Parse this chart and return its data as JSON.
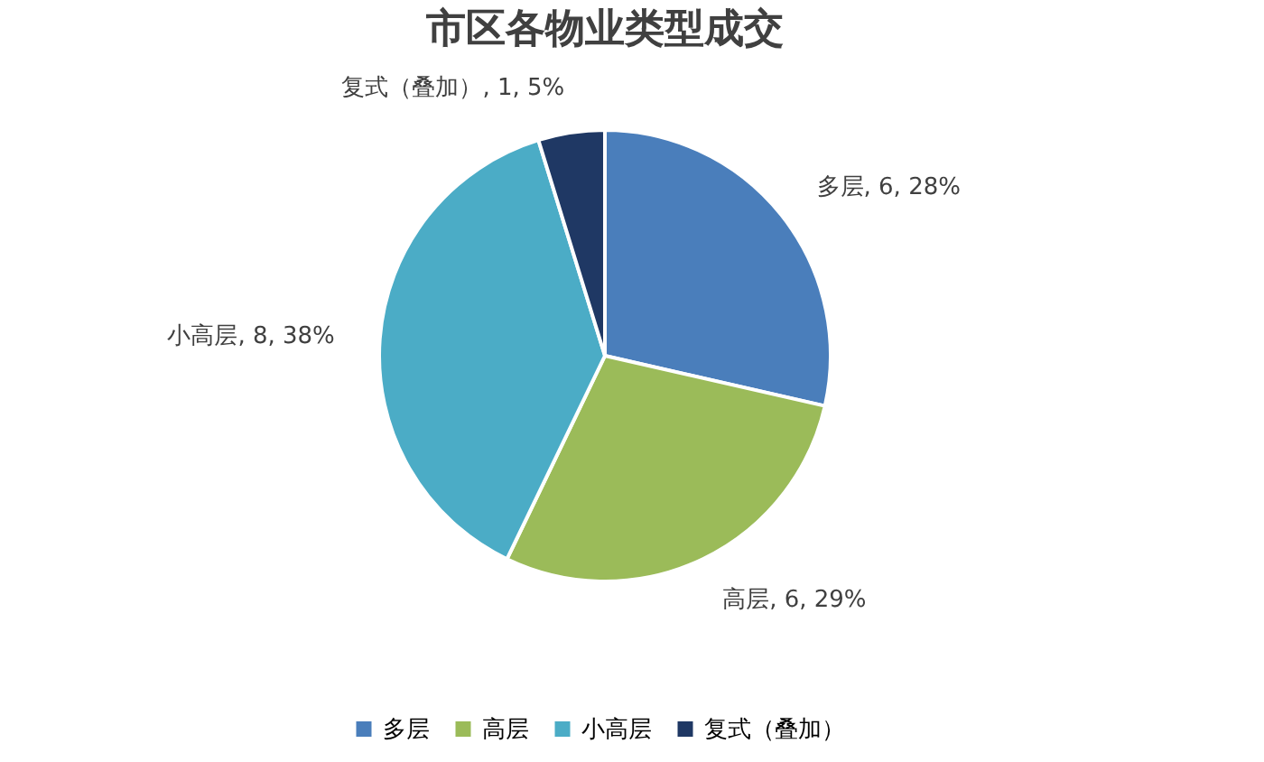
{
  "chart_data": {
    "type": "pie",
    "title": "市区各物业类型成交",
    "categories": [
      "多层",
      "高层",
      "小高层",
      "复式（叠加）"
    ],
    "values": [
      6,
      6,
      8,
      1
    ],
    "value_labels": [
      "多层, 6, 28%",
      "高层, 6, 29%",
      "小高层, 8, 38%",
      "复式（叠加）, 1, 5%"
    ],
    "colors": [
      "#4a7ebb",
      "#9bbb59",
      "#4bacc6",
      "#1f3864"
    ],
    "legend": "bottom"
  }
}
